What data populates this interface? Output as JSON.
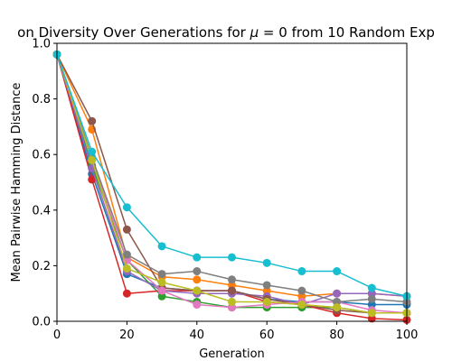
{
  "chart_data": {
    "type": "line",
    "title_prefix": "on Diversity Over Generations for ",
    "title_mu": "μ",
    "title_suffix": " = 0 from 10 Random Exp",
    "xlabel": "Generation",
    "ylabel": "Mean Pairwise Hamming Distance",
    "xlim": [
      0,
      100
    ],
    "ylim": [
      0.0,
      1.0
    ],
    "x_ticks": [
      "0",
      "20",
      "40",
      "60",
      "80",
      "100"
    ],
    "y_ticks": [
      "0.0",
      "0.2",
      "0.4",
      "0.6",
      "0.8",
      "1.0"
    ],
    "grid": false,
    "legend": "none",
    "x": [
      0,
      10,
      20,
      30,
      40,
      50,
      60,
      70,
      80,
      90,
      100
    ],
    "series": [
      {
        "color": "#1f77b4",
        "values": [
          0.96,
          0.53,
          0.17,
          0.12,
          0.11,
          0.11,
          0.08,
          0.07,
          0.07,
          0.06,
          0.06
        ]
      },
      {
        "color": "#ff7f0e",
        "values": [
          0.96,
          0.69,
          0.23,
          0.16,
          0.15,
          0.13,
          0.11,
          0.09,
          0.1,
          0.1,
          0.09
        ]
      },
      {
        "color": "#2ca02c",
        "values": [
          0.96,
          0.56,
          0.22,
          0.09,
          0.07,
          0.05,
          0.05,
          0.05,
          0.05,
          0.03,
          0.03
        ]
      },
      {
        "color": "#d62728",
        "values": [
          0.96,
          0.51,
          0.1,
          0.11,
          0.11,
          0.11,
          0.07,
          0.06,
          0.03,
          0.01,
          0.005
        ]
      },
      {
        "color": "#9467bd",
        "values": [
          0.96,
          0.55,
          0.18,
          0.11,
          0.1,
          0.1,
          0.09,
          0.06,
          0.1,
          0.1,
          0.09
        ]
      },
      {
        "color": "#8c564b",
        "values": [
          0.96,
          0.72,
          0.33,
          0.12,
          0.11,
          0.11,
          0.08,
          0.06,
          0.04,
          0.03,
          0.03
        ]
      },
      {
        "color": "#e377c2",
        "values": [
          0.96,
          0.58,
          0.22,
          0.11,
          0.06,
          0.05,
          0.06,
          0.07,
          0.07,
          0.04,
          0.03
        ]
      },
      {
        "color": "#7f7f7f",
        "values": [
          0.96,
          0.59,
          0.24,
          0.17,
          0.18,
          0.15,
          0.13,
          0.11,
          0.07,
          0.08,
          0.07
        ]
      },
      {
        "color": "#bcbd22",
        "values": [
          0.96,
          0.58,
          0.19,
          0.14,
          0.11,
          0.07,
          0.07,
          0.06,
          0.05,
          0.03,
          0.03
        ]
      },
      {
        "color": "#17becf",
        "values": [
          0.96,
          0.61,
          0.41,
          0.27,
          0.23,
          0.23,
          0.21,
          0.18,
          0.18,
          0.12,
          0.09
        ]
      }
    ]
  }
}
